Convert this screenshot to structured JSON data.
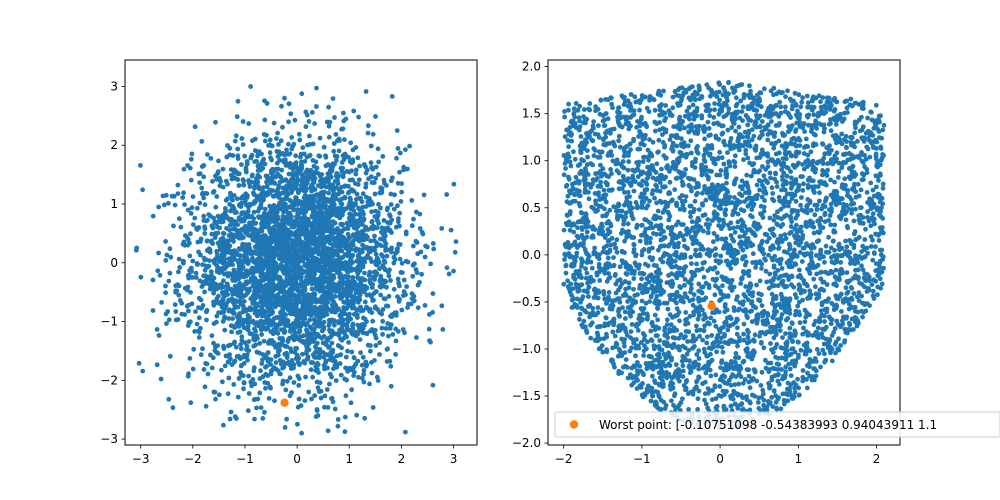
{
  "colors": {
    "scatter": "#1f77b4",
    "worst": "#ff7f0e"
  },
  "chart_data": [
    {
      "type": "scatter",
      "title": "",
      "xlabel": "",
      "ylabel": "",
      "xlim": [
        -3.3,
        3.45
      ],
      "ylim": [
        -3.1,
        3.45
      ],
      "xticks": [
        -3,
        -2,
        -1,
        0,
        1,
        2,
        3
      ],
      "yticks": [
        -3,
        -2,
        -1,
        0,
        1,
        2,
        3
      ],
      "grid": false,
      "sample": {
        "count": 4200,
        "distribution": "standard normal in x and y",
        "x_center": 0,
        "y_center": 0,
        "spread": 1,
        "x_range": [
          -3.1,
          3.2
        ],
        "y_range": [
          -2.95,
          3.15
        ]
      },
      "highlight": {
        "x": -0.24,
        "y": -2.38
      }
    },
    {
      "type": "scatter",
      "title": "",
      "xlabel": "",
      "ylabel": "",
      "xlim": [
        -2.2,
        2.3
      ],
      "ylim": [
        -2.02,
        2.07
      ],
      "xticks": [
        -2,
        -1,
        0,
        1,
        2
      ],
      "yticks": [
        -2.0,
        -1.5,
        -1.0,
        -0.5,
        0.0,
        0.5,
        1.0,
        1.5,
        2.0
      ],
      "grid": false,
      "sample": {
        "count": 4200,
        "distribution": "U-shaped envelope, points above y ≈ 0.35·x² − 1.85, capped near 1.85",
        "x_range": [
          -2.0,
          2.1
        ],
        "y_range": [
          -1.85,
          1.85
        ]
      },
      "highlight": {
        "x": -0.1075,
        "y": -0.5438
      },
      "legend": {
        "placement": "lower-right",
        "entries": [
          {
            "label": "Worst point: [-0.10751098 -0.54383993  0.94043911  1.1",
            "color": "#ff7f0e"
          }
        ]
      }
    }
  ]
}
